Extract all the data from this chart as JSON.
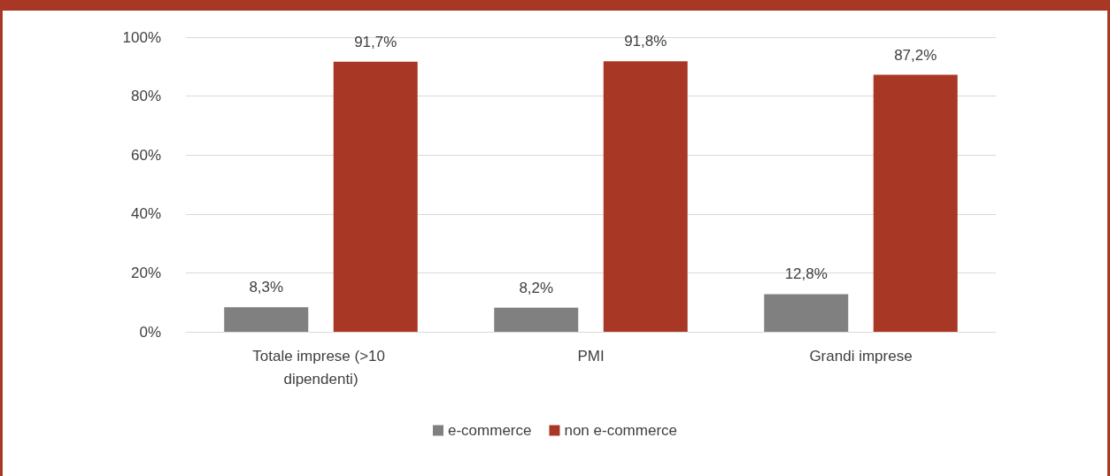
{
  "chart_data": {
    "type": "bar",
    "categories": [
      "Totale imprese (>10 dipendenti)",
      "PMI",
      "Grandi imprese"
    ],
    "series": [
      {
        "name": "e-commerce",
        "color": "#808080",
        "values": [
          8.3,
          8.2,
          12.8
        ],
        "value_labels": [
          "8,3%",
          "8,2%",
          "12,8%"
        ]
      },
      {
        "name": "non e-commerce",
        "color": "#a83825",
        "values": [
          91.7,
          91.8,
          87.2
        ],
        "value_labels": [
          "91,7%",
          "91,8%",
          "87,2%"
        ]
      }
    ],
    "ylim": [
      0,
      100
    ],
    "yticks": [
      {
        "value": 0,
        "label": "0%"
      },
      {
        "value": 20,
        "label": "20%"
      },
      {
        "value": 40,
        "label": "40%"
      },
      {
        "value": 60,
        "label": "60%"
      },
      {
        "value": 80,
        "label": "80%"
      },
      {
        "value": 100,
        "label": "100%"
      }
    ],
    "grid": "y",
    "legend": "bottom"
  }
}
